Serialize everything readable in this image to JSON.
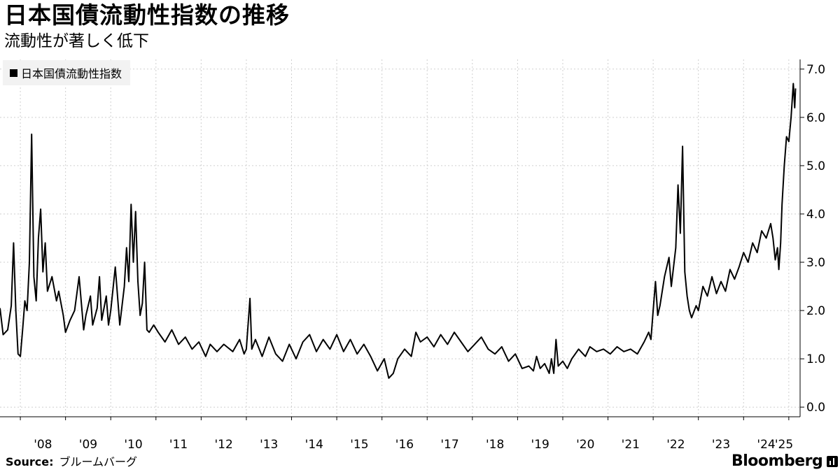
{
  "header": {
    "title": "日本国債流動性指数の推移",
    "subtitle": "流動性が著しく低下"
  },
  "legend": {
    "label": "日本国債流動性指数",
    "color": "#000000"
  },
  "footer": {
    "source_label": "Source:",
    "source_text": "ブルームバーグ",
    "brand": "Bloomberg"
  },
  "chart_data": {
    "type": "line",
    "title": "日本国債流動性指数の推移",
    "subtitle": "流動性が著しく低下",
    "x_tick_labels": [
      "'08",
      "'09",
      "'10",
      "'11",
      "'12",
      "'13",
      "'14",
      "'15",
      "'16",
      "'17",
      "'18",
      "'19",
      "'20",
      "'21",
      "'22",
      "'23",
      "'24",
      "'25"
    ],
    "x_tick_years": [
      2008,
      2009,
      2010,
      2011,
      2012,
      2013,
      2014,
      2015,
      2016,
      2017,
      2018,
      2019,
      2020,
      2021,
      2022,
      2023,
      2024,
      2025
    ],
    "y_tick_labels": [
      "0.0",
      "1.0",
      "2.0",
      "3.0",
      "4.0",
      "5.0",
      "6.0",
      "7.0"
    ],
    "y_ticks": [
      0,
      1,
      2,
      3,
      4,
      5,
      6,
      7
    ],
    "xlim": [
      2007.55,
      2025.25
    ],
    "ylim": [
      -0.2,
      7.2
    ],
    "grid": true,
    "legend_position": "top-left",
    "y_axis_side": "right",
    "series": [
      {
        "name": "日本国債流動性指数",
        "color": "#000000",
        "points": [
          [
            2007.55,
            2.05
          ],
          [
            2007.62,
            1.5
          ],
          [
            2007.72,
            1.6
          ],
          [
            2007.8,
            2.1
          ],
          [
            2007.85,
            3.4
          ],
          [
            2007.9,
            2.0
          ],
          [
            2007.95,
            1.1
          ],
          [
            2008.0,
            1.05
          ],
          [
            2008.05,
            1.6
          ],
          [
            2008.1,
            2.2
          ],
          [
            2008.15,
            2.0
          ],
          [
            2008.2,
            3.0
          ],
          [
            2008.25,
            5.65
          ],
          [
            2008.3,
            2.7
          ],
          [
            2008.35,
            2.2
          ],
          [
            2008.4,
            3.5
          ],
          [
            2008.45,
            4.1
          ],
          [
            2008.5,
            2.8
          ],
          [
            2008.55,
            3.4
          ],
          [
            2008.6,
            2.4
          ],
          [
            2008.7,
            2.7
          ],
          [
            2008.8,
            2.2
          ],
          [
            2008.85,
            2.4
          ],
          [
            2008.95,
            1.9
          ],
          [
            2009.0,
            1.55
          ],
          [
            2009.1,
            1.8
          ],
          [
            2009.2,
            2.0
          ],
          [
            2009.3,
            2.7
          ],
          [
            2009.4,
            1.6
          ],
          [
            2009.45,
            1.9
          ],
          [
            2009.55,
            2.3
          ],
          [
            2009.6,
            1.7
          ],
          [
            2009.7,
            2.05
          ],
          [
            2009.75,
            2.7
          ],
          [
            2009.8,
            1.8
          ],
          [
            2009.9,
            2.3
          ],
          [
            2009.95,
            1.7
          ],
          [
            2010.0,
            2.0
          ],
          [
            2010.1,
            2.9
          ],
          [
            2010.2,
            1.7
          ],
          [
            2010.3,
            2.5
          ],
          [
            2010.35,
            3.3
          ],
          [
            2010.4,
            2.6
          ],
          [
            2010.45,
            4.2
          ],
          [
            2010.5,
            3.0
          ],
          [
            2010.55,
            4.05
          ],
          [
            2010.6,
            2.6
          ],
          [
            2010.65,
            1.9
          ],
          [
            2010.7,
            2.15
          ],
          [
            2010.75,
            3.0
          ],
          [
            2010.8,
            1.6
          ],
          [
            2010.85,
            1.55
          ],
          [
            2010.95,
            1.7
          ],
          [
            2011.05,
            1.55
          ],
          [
            2011.2,
            1.35
          ],
          [
            2011.35,
            1.6
          ],
          [
            2011.5,
            1.3
          ],
          [
            2011.65,
            1.45
          ],
          [
            2011.8,
            1.2
          ],
          [
            2011.95,
            1.35
          ],
          [
            2012.1,
            1.05
          ],
          [
            2012.2,
            1.3
          ],
          [
            2012.35,
            1.15
          ],
          [
            2012.5,
            1.3
          ],
          [
            2012.7,
            1.15
          ],
          [
            2012.85,
            1.4
          ],
          [
            2012.95,
            1.1
          ],
          [
            2013.0,
            1.2
          ],
          [
            2013.08,
            2.25
          ],
          [
            2013.12,
            1.2
          ],
          [
            2013.2,
            1.4
          ],
          [
            2013.35,
            1.05
          ],
          [
            2013.5,
            1.45
          ],
          [
            2013.65,
            1.1
          ],
          [
            2013.8,
            0.95
          ],
          [
            2013.95,
            1.3
          ],
          [
            2014.1,
            1.0
          ],
          [
            2014.25,
            1.35
          ],
          [
            2014.4,
            1.5
          ],
          [
            2014.55,
            1.15
          ],
          [
            2014.7,
            1.4
          ],
          [
            2014.85,
            1.2
          ],
          [
            2015.0,
            1.5
          ],
          [
            2015.15,
            1.15
          ],
          [
            2015.3,
            1.4
          ],
          [
            2015.45,
            1.1
          ],
          [
            2015.6,
            1.3
          ],
          [
            2015.75,
            1.05
          ],
          [
            2015.9,
            0.75
          ],
          [
            2016.05,
            1.0
          ],
          [
            2016.15,
            0.6
          ],
          [
            2016.25,
            0.7
          ],
          [
            2016.35,
            1.0
          ],
          [
            2016.5,
            1.2
          ],
          [
            2016.65,
            1.05
          ],
          [
            2016.75,
            1.55
          ],
          [
            2016.85,
            1.35
          ],
          [
            2017.0,
            1.45
          ],
          [
            2017.15,
            1.25
          ],
          [
            2017.3,
            1.5
          ],
          [
            2017.45,
            1.3
          ],
          [
            2017.6,
            1.55
          ],
          [
            2017.75,
            1.35
          ],
          [
            2017.9,
            1.15
          ],
          [
            2018.05,
            1.3
          ],
          [
            2018.2,
            1.45
          ],
          [
            2018.35,
            1.2
          ],
          [
            2018.5,
            1.1
          ],
          [
            2018.65,
            1.25
          ],
          [
            2018.8,
            0.95
          ],
          [
            2018.95,
            1.1
          ],
          [
            2019.1,
            0.8
          ],
          [
            2019.25,
            0.85
          ],
          [
            2019.35,
            0.75
          ],
          [
            2019.42,
            1.05
          ],
          [
            2019.5,
            0.8
          ],
          [
            2019.6,
            0.9
          ],
          [
            2019.7,
            0.7
          ],
          [
            2019.75,
            1.0
          ],
          [
            2019.8,
            0.7
          ],
          [
            2019.85,
            1.4
          ],
          [
            2019.9,
            0.85
          ],
          [
            2020.0,
            0.95
          ],
          [
            2020.1,
            0.8
          ],
          [
            2020.2,
            1.0
          ],
          [
            2020.35,
            1.2
          ],
          [
            2020.5,
            1.05
          ],
          [
            2020.6,
            1.25
          ],
          [
            2020.75,
            1.15
          ],
          [
            2020.9,
            1.2
          ],
          [
            2021.05,
            1.1
          ],
          [
            2021.2,
            1.25
          ],
          [
            2021.35,
            1.15
          ],
          [
            2021.5,
            1.2
          ],
          [
            2021.65,
            1.1
          ],
          [
            2021.8,
            1.35
          ],
          [
            2021.9,
            1.55
          ],
          [
            2021.95,
            1.4
          ],
          [
            2022.0,
            2.0
          ],
          [
            2022.05,
            2.6
          ],
          [
            2022.1,
            1.9
          ],
          [
            2022.15,
            2.1
          ],
          [
            2022.25,
            2.7
          ],
          [
            2022.3,
            2.9
          ],
          [
            2022.35,
            3.1
          ],
          [
            2022.4,
            2.5
          ],
          [
            2022.5,
            3.3
          ],
          [
            2022.55,
            4.6
          ],
          [
            2022.6,
            3.6
          ],
          [
            2022.65,
            5.4
          ],
          [
            2022.7,
            2.8
          ],
          [
            2022.75,
            2.3
          ],
          [
            2022.8,
            2.0
          ],
          [
            2022.85,
            1.85
          ],
          [
            2022.95,
            2.1
          ],
          [
            2023.0,
            2.0
          ],
          [
            2023.1,
            2.5
          ],
          [
            2023.2,
            2.3
          ],
          [
            2023.3,
            2.7
          ],
          [
            2023.4,
            2.35
          ],
          [
            2023.5,
            2.6
          ],
          [
            2023.6,
            2.4
          ],
          [
            2023.7,
            2.85
          ],
          [
            2023.8,
            2.65
          ],
          [
            2023.9,
            2.9
          ],
          [
            2024.0,
            3.2
          ],
          [
            2024.1,
            3.0
          ],
          [
            2024.2,
            3.4
          ],
          [
            2024.3,
            3.2
          ],
          [
            2024.4,
            3.65
          ],
          [
            2024.5,
            3.5
          ],
          [
            2024.6,
            3.8
          ],
          [
            2024.65,
            3.5
          ],
          [
            2024.7,
            3.05
          ],
          [
            2024.75,
            3.3
          ],
          [
            2024.78,
            2.85
          ],
          [
            2024.82,
            3.4
          ],
          [
            2024.85,
            4.2
          ],
          [
            2024.9,
            5.0
          ],
          [
            2024.95,
            5.6
          ],
          [
            2025.0,
            5.5
          ],
          [
            2025.05,
            6.0
          ],
          [
            2025.1,
            6.7
          ],
          [
            2025.13,
            6.2
          ],
          [
            2025.15,
            6.6
          ]
        ]
      }
    ]
  }
}
